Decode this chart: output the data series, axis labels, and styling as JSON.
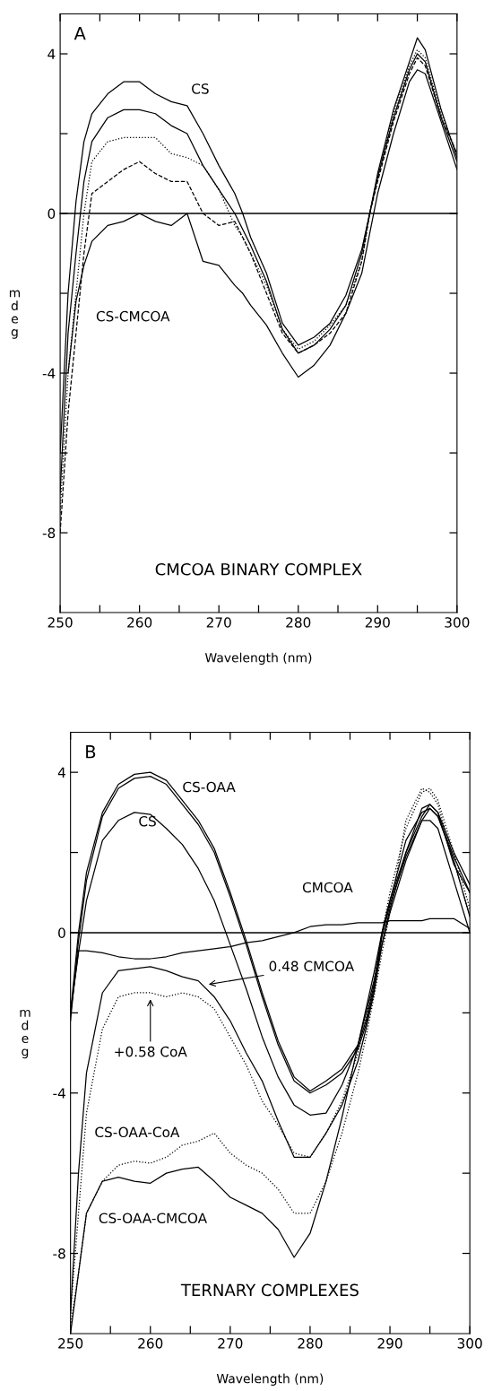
{
  "chart_data": [
    {
      "type": "line",
      "title": "CMCOA BINARY COMPLEX",
      "xlabel": "Wavelength (nm)",
      "ylabel": "mdeg",
      "xlim": [
        250,
        300
      ],
      "ylim": [
        -10,
        5
      ],
      "xticks": [
        250,
        {
          "value": 255,
          "label": null
        },
        260,
        {
          "value": 265,
          "label": null
        },
        270,
        {
          "value": 275,
          "label": null
        },
        280,
        {
          "value": 285,
          "label": null
        },
        290,
        {
          "value": 295,
          "label": null
        },
        300
      ],
      "yticks": [
        4,
        {
          "value": 2,
          "label": null
        },
        0,
        {
          "value": -2,
          "label": null
        },
        -4,
        {
          "value": -6,
          "label": null
        },
        -8
      ],
      "grid": false,
      "marker": "none",
      "ref_lines": [
        {
          "axis": "y",
          "value": 0,
          "color": "#000000"
        }
      ],
      "annotations": [
        "A",
        "CS",
        "CS-CMCOA"
      ],
      "x": [
        250,
        251,
        252,
        253,
        254,
        256,
        258,
        260,
        262,
        264,
        266,
        268,
        270,
        272,
        273,
        274,
        276,
        278,
        280,
        282,
        284,
        286,
        288,
        289,
        290,
        292,
        294,
        295,
        296,
        298,
        300
      ],
      "series": [
        {
          "color": "#000000",
          "line_style": "solid",
          "values": [
            -6,
            -2,
            0.3,
            1.8,
            2.5,
            3.0,
            3.3,
            3.3,
            3.0,
            2.8,
            2.7,
            2.0,
            1.2,
            0.5,
            0.0,
            -0.6,
            -1.5,
            -2.75,
            -3.3,
            -3.1,
            -2.75,
            -2.05,
            -0.9,
            0.0,
            1.0,
            2.6,
            3.8,
            4.4,
            4.1,
            2.6,
            1.4
          ]
        },
        {
          "color": "#000000",
          "line_style": "solid",
          "values": [
            -7,
            -3,
            -1,
            0.8,
            1.8,
            2.4,
            2.6,
            2.6,
            2.5,
            2.2,
            2.0,
            1.2,
            0.6,
            0.0,
            -0.4,
            -0.8,
            -1.7,
            -2.9,
            -3.5,
            -3.3,
            -2.9,
            -2.3,
            -1.0,
            0.0,
            0.9,
            2.4,
            3.6,
            4.0,
            3.8,
            2.4,
            1.3
          ]
        },
        {
          "color": "#000000",
          "line_style": "dotted",
          "values": [
            -7.5,
            -4,
            -2,
            0,
            1.3,
            1.8,
            1.9,
            1.9,
            1.9,
            1.5,
            1.4,
            1.2,
            0.6,
            -0.3,
            -0.6,
            -1.0,
            -1.8,
            -2.9,
            -3.4,
            -3.2,
            -2.8,
            -2.3,
            -1.2,
            0.0,
            0.9,
            2.5,
            3.7,
            4.1,
            3.9,
            2.5,
            1.5
          ]
        },
        {
          "color": "#000000",
          "line_style": "dashed",
          "values": [
            -8,
            -5,
            -3,
            -1,
            0.5,
            0.8,
            1.1,
            1.3,
            1.0,
            0.8,
            0.8,
            0.0,
            -0.3,
            -0.2,
            -0.6,
            -1.0,
            -2.0,
            -3.0,
            -3.5,
            -3.3,
            -3.0,
            -2.5,
            -1.2,
            0.0,
            0.8,
            2.3,
            3.5,
            3.9,
            3.7,
            2.4,
            1.5
          ]
        },
        {
          "color": "#000000",
          "line_style": "solid",
          "values": [
            null,
            -4.0,
            -2.2,
            -1.3,
            -0.7,
            -0.3,
            -0.2,
            0.0,
            -0.2,
            -0.3,
            0.0,
            -1.2,
            -1.3,
            -1.8,
            -2.0,
            -2.3,
            -2.8,
            -3.5,
            -4.1,
            -3.8,
            -3.3,
            -2.5,
            -1.5,
            -0.5,
            0.5,
            2.0,
            3.3,
            3.6,
            3.5,
            2.3,
            1.1
          ]
        }
      ]
    },
    {
      "type": "line",
      "title": "TERNARY COMPLEXES",
      "xlabel": "Wavelength (nm)",
      "ylabel": "mdeg",
      "xlim": [
        250,
        300
      ],
      "ylim": [
        -10,
        5
      ],
      "xticks": [
        250,
        {
          "value": 255,
          "label": null
        },
        260,
        {
          "value": 265,
          "label": null
        },
        270,
        {
          "value": 275,
          "label": null
        },
        280,
        {
          "value": 285,
          "label": null
        },
        290,
        {
          "value": 295,
          "label": null
        },
        300
      ],
      "yticks": [
        4,
        {
          "value": 2,
          "label": null
        },
        0,
        {
          "value": -2,
          "label": null
        },
        -4,
        {
          "value": -6,
          "label": null
        },
        -8
      ],
      "grid": false,
      "marker": "none",
      "ref_lines": [
        {
          "axis": "y",
          "value": 0,
          "color": "#000000"
        }
      ],
      "annotations": [
        "B",
        "CS-OAA",
        "CS",
        "CMCOA",
        {
          "text": "0.48 CMCOA",
          "x": 267,
          "y": -1.3
        },
        {
          "text": "+0.58 CoA",
          "x": 260,
          "y": -1.6
        },
        "CS-OAA-CoA",
        "CS-OAA-CMCOA"
      ],
      "x": [
        250,
        251,
        252,
        254,
        256,
        258,
        260,
        262,
        264,
        266,
        268,
        270,
        272,
        274,
        276,
        278,
        280,
        282,
        284,
        286,
        287,
        288,
        289,
        290,
        292,
        294,
        295,
        296,
        298,
        300
      ],
      "series": [
        {
          "color": "#000000",
          "line_style": "solid",
          "values": [
            -2,
            0.0,
            1.5,
            3.0,
            3.7,
            3.95,
            4.0,
            3.8,
            3.3,
            2.8,
            2.1,
            1.0,
            -0.2,
            -1.5,
            -2.7,
            -3.6,
            -3.95,
            -3.7,
            -3.4,
            -2.8,
            -2.2,
            -1.3,
            0.0,
            0.8,
            2.0,
            2.9,
            3.2,
            3.0,
            2.0,
            1.2
          ]
        },
        {
          "color": "#000000",
          "line_style": "solid",
          "values": [
            -2.2,
            -0.2,
            1.3,
            2.9,
            3.6,
            3.85,
            3.9,
            3.7,
            3.2,
            2.7,
            2.0,
            0.9,
            -0.3,
            -1.6,
            -2.8,
            -3.7,
            -4.0,
            -3.8,
            -3.5,
            -2.9,
            -2.3,
            -1.4,
            -0.1,
            0.7,
            1.9,
            2.8,
            3.1,
            2.9,
            1.9,
            1.0
          ]
        },
        {
          "color": "#000000",
          "line_style": "solid",
          "values": [
            -2,
            -0.5,
            0.8,
            2.3,
            2.8,
            3.0,
            2.95,
            2.6,
            2.2,
            1.6,
            0.8,
            -0.3,
            -1.4,
            -2.6,
            -3.6,
            -4.3,
            -4.55,
            -4.5,
            -3.8,
            -2.8,
            -2.0,
            -1.2,
            -0.3,
            0.5,
            1.8,
            2.8,
            2.8,
            2.6,
            1.3,
            0.0
          ]
        },
        {
          "color": "#000000",
          "line_style": "solid",
          "values": [
            -2,
            -0.45,
            -0.45,
            -0.5,
            -0.6,
            -0.65,
            -0.65,
            -0.6,
            -0.5,
            -0.45,
            -0.4,
            -0.35,
            -0.25,
            -0.2,
            -0.1,
            0.0,
            0.15,
            0.2,
            0.2,
            0.25,
            0.25,
            0.25,
            0.25,
            0.3,
            0.3,
            0.3,
            0.35,
            0.35,
            0.35,
            0.1
          ]
        },
        {
          "color": "#000000",
          "line_style": "solid",
          "values": [
            -9.5,
            -6,
            -3.5,
            -1.5,
            -0.95,
            -0.9,
            -0.85,
            -0.95,
            -1.1,
            -1.2,
            -1.6,
            -2.2,
            -3.0,
            -3.7,
            -4.7,
            -5.6,
            -5.6,
            -5.0,
            -4.3,
            -3.2,
            -2.4,
            -1.5,
            -0.3,
            0.6,
            2.0,
            3.1,
            3.2,
            3.0,
            1.7,
            1.0
          ]
        },
        {
          "color": "#000000",
          "line_style": "dotted",
          "values": [
            -9.5,
            -7,
            -4.5,
            -2.4,
            -1.6,
            -1.5,
            -1.5,
            -1.6,
            -1.5,
            -1.6,
            -1.9,
            -2.6,
            -3.3,
            -4.2,
            -4.8,
            -5.5,
            -5.6,
            -5.0,
            -4.2,
            -3.0,
            -2.1,
            -1.2,
            0.0,
            1.0,
            2.6,
            3.5,
            3.6,
            3.3,
            2.0,
            0.6
          ]
        },
        {
          "color": "#000000",
          "line_style": "dotted",
          "values": [
            -9.8,
            -8.5,
            -7,
            -6.2,
            -5.8,
            -5.7,
            -5.75,
            -5.6,
            -5.3,
            -5.2,
            -5.0,
            -5.5,
            -5.8,
            -6.0,
            -6.4,
            -7.0,
            -7.0,
            -6.2,
            -5.0,
            -3.5,
            -2.6,
            -1.6,
            -0.5,
            0.5,
            2.8,
            3.6,
            3.5,
            3.2,
            1.8,
            0.4
          ]
        },
        {
          "color": "#000000",
          "line_style": "solid",
          "values": [
            -10,
            -8.5,
            -7,
            -6.2,
            -6.1,
            -6.2,
            -6.25,
            -6.0,
            -5.9,
            -5.85,
            -6.2,
            -6.6,
            -6.8,
            -7.0,
            -7.4,
            -8.1,
            -7.5,
            -6.2,
            -4.6,
            -2.8,
            -1.9,
            -1.0,
            0.0,
            0.8,
            2.3,
            3.0,
            3.1,
            2.9,
            1.8,
            0.4
          ]
        }
      ]
    }
  ]
}
